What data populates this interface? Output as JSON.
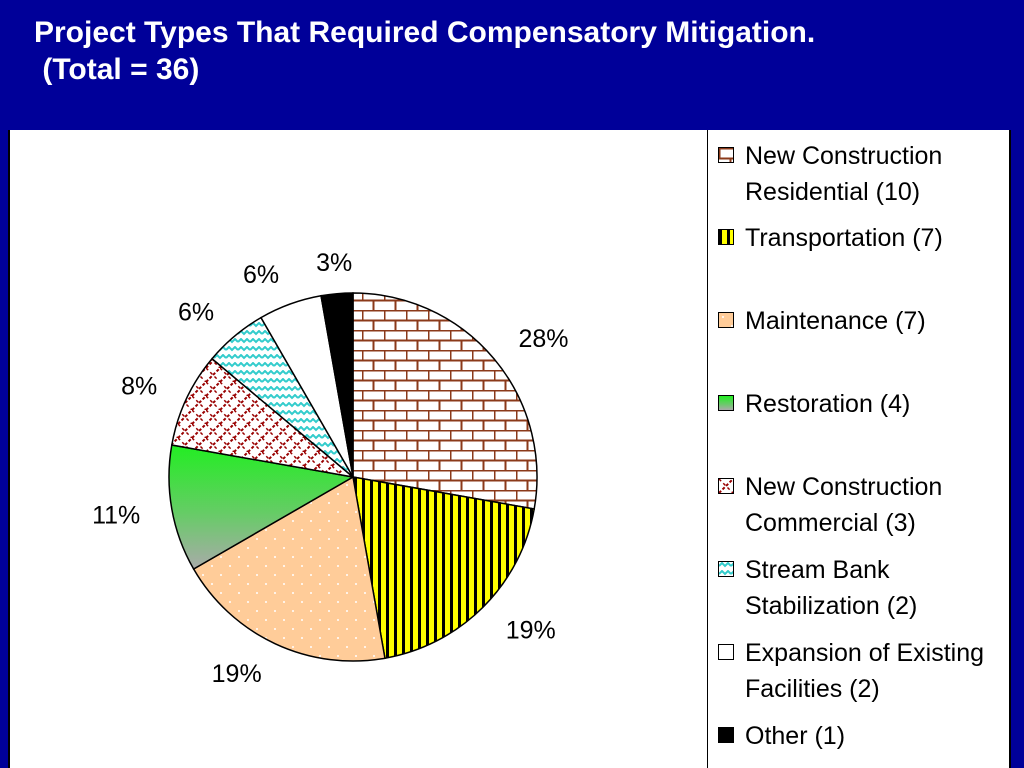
{
  "slide": {
    "title": "Project Types That Required Compensatory Mitigation.\n (Total = 36)"
  },
  "chart_data": {
    "type": "pie",
    "total": 36,
    "slices": [
      {
        "label": "New Construction Residential (10)",
        "value": 10,
        "percent_label": "28%",
        "fill": "#8B3A1A",
        "pattern": "brick"
      },
      {
        "label": "Transportation (7)",
        "value": 7,
        "percent_label": "19%",
        "fill": "#FFFF00",
        "pattern": "vstripe"
      },
      {
        "label": "Maintenance (7)",
        "value": 7,
        "percent_label": "19%",
        "fill": "#FFCC99",
        "pattern": "dots"
      },
      {
        "label": "Restoration (4)",
        "value": 4,
        "percent_label": "11%",
        "fill": "#33DD33",
        "pattern": "gradient"
      },
      {
        "label": "New Construction Commercial (3)",
        "value": 3,
        "percent_label": "8%",
        "fill": "#990000",
        "pattern": "diag"
      },
      {
        "label": "Stream Bank Stabilization (2)",
        "value": 2,
        "percent_label": "6%",
        "fill": "#33CCCC",
        "pattern": "wave"
      },
      {
        "label": "Expansion of Existing Facilities (2)",
        "value": 2,
        "percent_label": "6%",
        "fill": "#FFFFFF",
        "pattern": "none"
      },
      {
        "label": "Other (1)",
        "value": 1,
        "percent_label": "3%",
        "fill": "#000000",
        "pattern": "solid"
      }
    ],
    "legend_position": "right"
  }
}
